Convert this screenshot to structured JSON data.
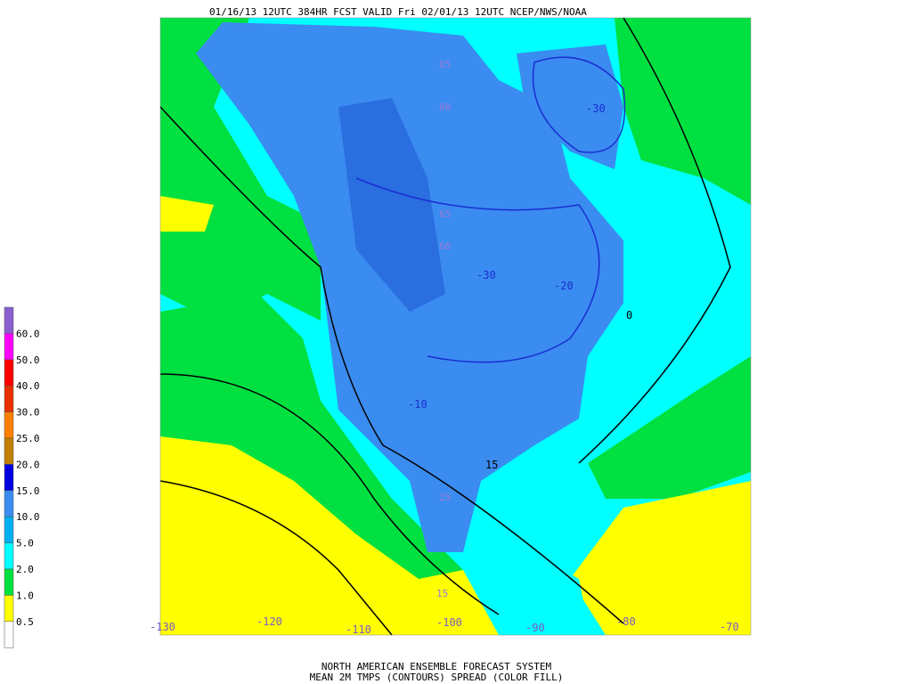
{
  "header": {
    "title": "01/16/13 12UTC  384HR  FCST VALID Fri 02/01/13 12UTC  NCEP/NWS/NOAA"
  },
  "legend": [
    {
      "label": "60.0",
      "color": "#8a5fd0"
    },
    {
      "label": "50.0",
      "color": "#ff00ff"
    },
    {
      "label": "40.0",
      "color": "#ff0000"
    },
    {
      "label": "30.0",
      "color": "#e83000"
    },
    {
      "label": "25.0",
      "color": "#ff7f00"
    },
    {
      "label": "20.0",
      "color": "#c08000"
    },
    {
      "label": "15.0",
      "color": "#0000e0"
    },
    {
      "label": "10.0",
      "color": "#3a8cf0"
    },
    {
      "label": "5.0",
      "color": "#00b0f0"
    },
    {
      "label": "2.0",
      "color": "#00ffff"
    },
    {
      "label": "1.0",
      "color": "#00e040"
    },
    {
      "label": "0.5",
      "color": "#ffff00"
    }
  ],
  "legend_bottom_color": "#ffffff",
  "map": {
    "latitude_labels": [
      "85",
      "80",
      "65",
      "60",
      "25",
      "15"
    ],
    "contour_labels": [
      "-30",
      "-30",
      "-20",
      "-10",
      "0",
      "15"
    ],
    "longitude_labels": [
      "-130",
      "-120",
      "-110",
      "-100",
      "-90",
      "-80",
      "-70"
    ]
  },
  "footer": [
    "NORTH AMERICAN ENSEMBLE FORECAST SYSTEM",
    "MEAN 2M TMPS (CONTOURS) SPREAD (COLOR FILL)"
  ]
}
